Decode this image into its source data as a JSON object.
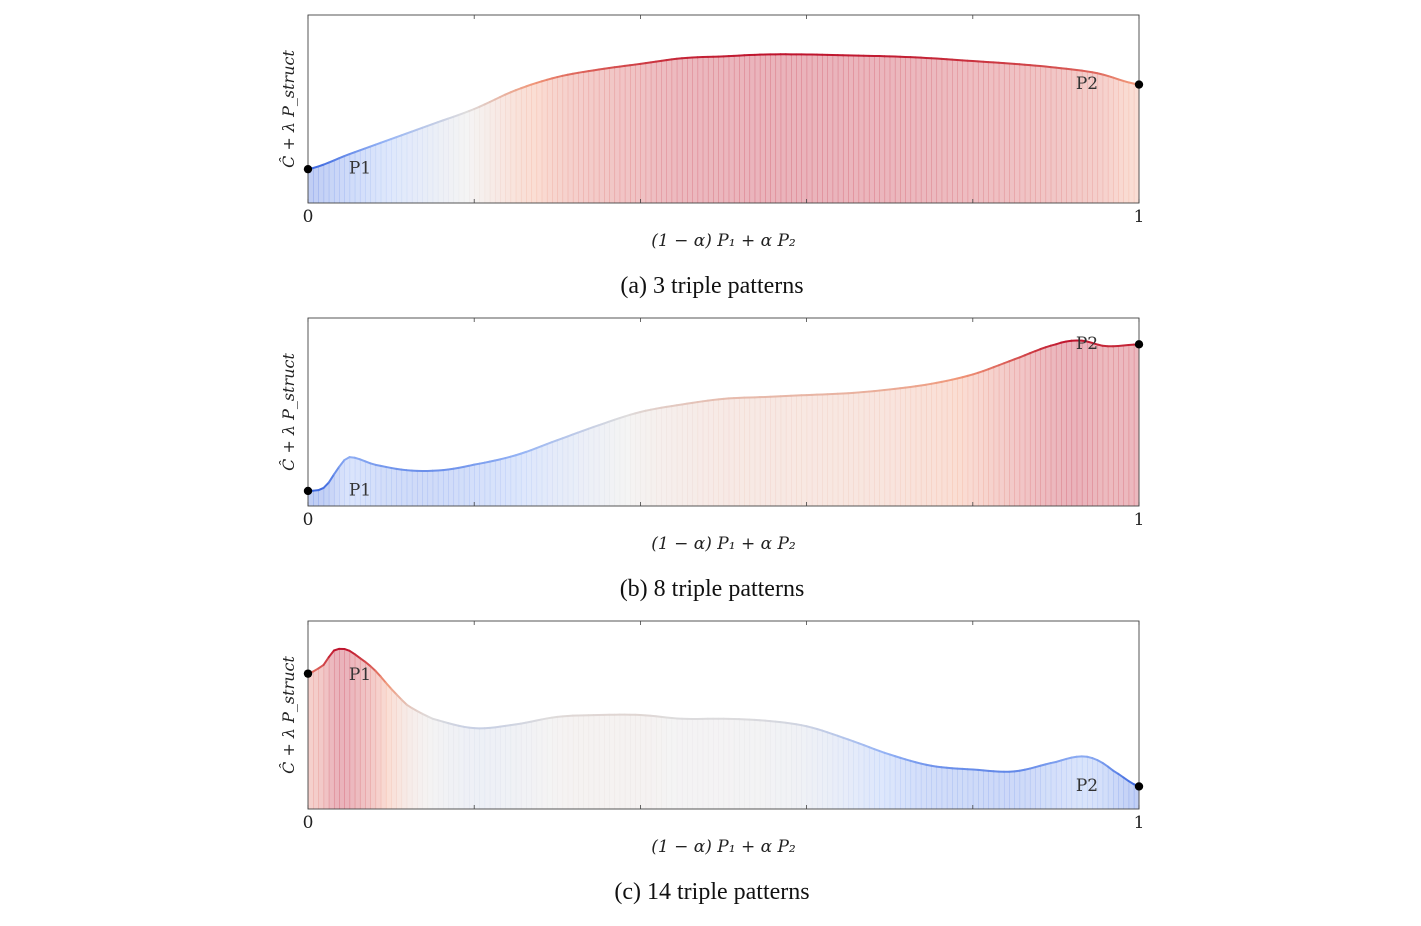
{
  "chart_data": [
    {
      "type": "area",
      "caption": "(a) 3 triple patterns",
      "xlabel": "(1 − α) P₁ + α P₂",
      "ylabel": "Ĉ + λ P_struct",
      "xlim": [
        0,
        1
      ],
      "ylim": [
        0,
        1
      ],
      "x_tick_labels": [
        "0",
        "1"
      ],
      "endpoints": [
        {
          "label": "P1",
          "x": 0.0,
          "y": 0.18
        },
        {
          "label": "P2",
          "x": 1.0,
          "y": 0.63
        }
      ],
      "x": [
        0.0,
        0.05,
        0.1,
        0.15,
        0.2,
        0.25,
        0.3,
        0.35,
        0.4,
        0.45,
        0.5,
        0.55,
        0.6,
        0.65,
        0.7,
        0.75,
        0.8,
        0.85,
        0.9,
        0.95,
        1.0
      ],
      "values": [
        0.18,
        0.26,
        0.34,
        0.42,
        0.5,
        0.6,
        0.67,
        0.71,
        0.74,
        0.77,
        0.78,
        0.79,
        0.79,
        0.785,
        0.78,
        0.77,
        0.755,
        0.74,
        0.72,
        0.69,
        0.63
      ]
    },
    {
      "type": "area",
      "caption": "(b) 8 triple patterns",
      "xlabel": "(1 − α) P₁ + α P₂",
      "ylabel": "Ĉ + λ P_struct",
      "xlim": [
        0,
        1
      ],
      "ylim": [
        0,
        1
      ],
      "x_tick_labels": [
        "0",
        "1"
      ],
      "endpoints": [
        {
          "label": "P1",
          "x": 0.0,
          "y": 0.08
        },
        {
          "label": "P2",
          "x": 1.0,
          "y": 0.86
        }
      ],
      "x": [
        0.0,
        0.02,
        0.04,
        0.05,
        0.08,
        0.12,
        0.16,
        0.2,
        0.25,
        0.3,
        0.35,
        0.4,
        0.45,
        0.5,
        0.55,
        0.6,
        0.65,
        0.7,
        0.75,
        0.8,
        0.85,
        0.9,
        0.93,
        0.96,
        1.0
      ],
      "values": [
        0.08,
        0.1,
        0.22,
        0.26,
        0.22,
        0.19,
        0.19,
        0.22,
        0.27,
        0.35,
        0.43,
        0.5,
        0.54,
        0.57,
        0.58,
        0.59,
        0.6,
        0.62,
        0.65,
        0.7,
        0.78,
        0.86,
        0.88,
        0.85,
        0.86
      ]
    },
    {
      "type": "area",
      "caption": "(c) 14 triple patterns",
      "xlabel": "(1 − α) P₁ + α P₂",
      "ylabel": "Ĉ + λ P_struct",
      "xlim": [
        0,
        1
      ],
      "ylim": [
        0,
        1
      ],
      "x_tick_labels": [
        "0",
        "1"
      ],
      "endpoints": [
        {
          "label": "P1",
          "x": 0.0,
          "y": 0.72
        },
        {
          "label": "P2",
          "x": 1.0,
          "y": 0.12
        }
      ],
      "x": [
        0.0,
        0.02,
        0.03,
        0.045,
        0.06,
        0.08,
        0.1,
        0.12,
        0.15,
        0.2,
        0.25,
        0.3,
        0.35,
        0.4,
        0.45,
        0.5,
        0.55,
        0.6,
        0.65,
        0.7,
        0.75,
        0.8,
        0.85,
        0.9,
        0.93,
        0.95,
        0.97,
        1.0
      ],
      "values": [
        0.72,
        0.77,
        0.84,
        0.85,
        0.81,
        0.74,
        0.64,
        0.55,
        0.48,
        0.43,
        0.45,
        0.49,
        0.5,
        0.5,
        0.48,
        0.48,
        0.47,
        0.44,
        0.37,
        0.29,
        0.23,
        0.21,
        0.2,
        0.25,
        0.28,
        0.26,
        0.2,
        0.12
      ]
    }
  ]
}
